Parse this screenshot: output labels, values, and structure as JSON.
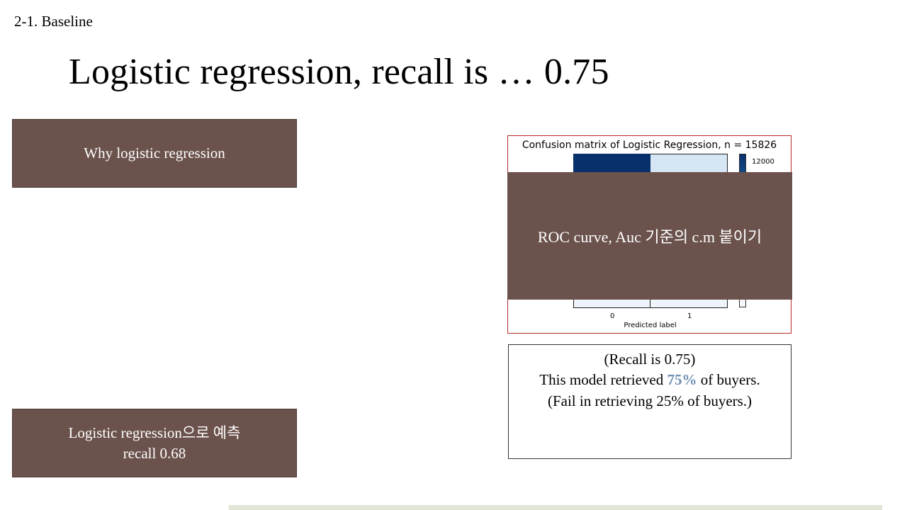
{
  "section_label": "2-1. Baseline",
  "title": "Logistic regression, recall is … 0.75",
  "left_boxes": {
    "why": "Why logistic regression",
    "predict_line1": "Logistic regression으로 예측",
    "predict_line2": "recall 0.68"
  },
  "confusion_matrix": {
    "title": "Confusion matrix of Logistic Regression, n = 15826",
    "colorbar_tick": "12000",
    "x_ticks": [
      "0",
      "1"
    ],
    "xlabel": "Predicted label",
    "colors": {
      "dark": "#08306b",
      "light": "#d6e6f5",
      "pale": "#eef4fb"
    }
  },
  "overlay_note": "ROC curve, Auc 기준의 c.m 붙이기",
  "recall_box": {
    "line1": "(Recall is 0.75)",
    "line2_pre": "This model retrieved ",
    "line2_highlight": "75%",
    "line2_post": " of  buyers.",
    "line3": "(Fail in retrieving 25% of  buyers.)"
  },
  "colors": {
    "brown": "#6b524c",
    "accent": "#6f8fb3",
    "frame": "#b52a2a"
  }
}
